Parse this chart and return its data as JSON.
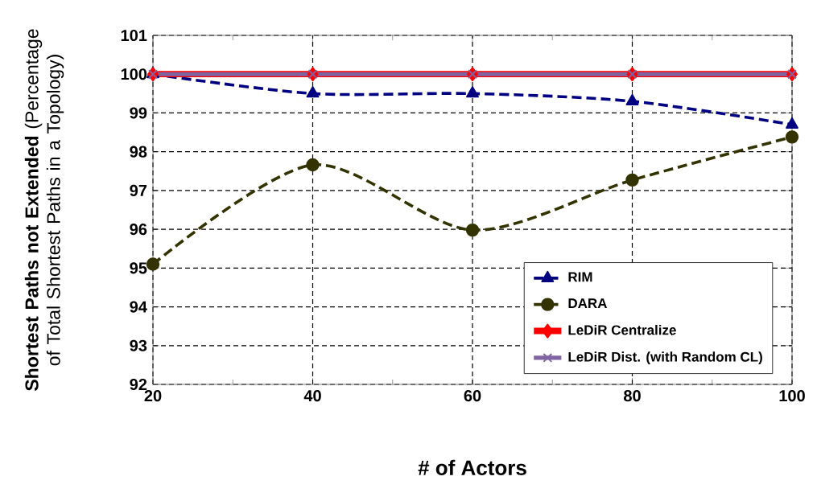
{
  "chart_data": {
    "type": "line",
    "xlabel": "# of Actors",
    "ylabel": "**Shortest Paths not Extended** (Percentage of Total Shortest Paths in a Topology)",
    "x": [
      20,
      40,
      60,
      80,
      100
    ],
    "xlim": [
      20,
      100
    ],
    "xticks": [
      20,
      40,
      60,
      80,
      100
    ],
    "ylim": [
      92,
      101
    ],
    "yticks": [
      92,
      93,
      94,
      95,
      96,
      97,
      98,
      99,
      100,
      101
    ],
    "grid": true,
    "legend": "bottom right",
    "series": [
      {
        "name": "RIM",
        "color": "#000080",
        "marker": "triangle",
        "line_style": "dashed",
        "values": [
          100,
          99.5,
          99.5,
          99.3,
          98.7
        ]
      },
      {
        "name": "DARA",
        "color": "#333300",
        "marker": "circle",
        "line_style": "dashed",
        "values": [
          95.1,
          97.66,
          95.98,
          97.27,
          98.38
        ]
      },
      {
        "name": "LeDiR Centralize",
        "color": "#ff0000",
        "marker": "diamond",
        "line_style": "solid",
        "values": [
          100,
          100,
          100,
          100,
          100
        ]
      },
      {
        "name": "LeDiR Dist. (with Random CL)",
        "color": "#8064a2",
        "marker": "cross",
        "line_style": "solid",
        "values": [
          100,
          100,
          100,
          100,
          100
        ]
      }
    ]
  }
}
